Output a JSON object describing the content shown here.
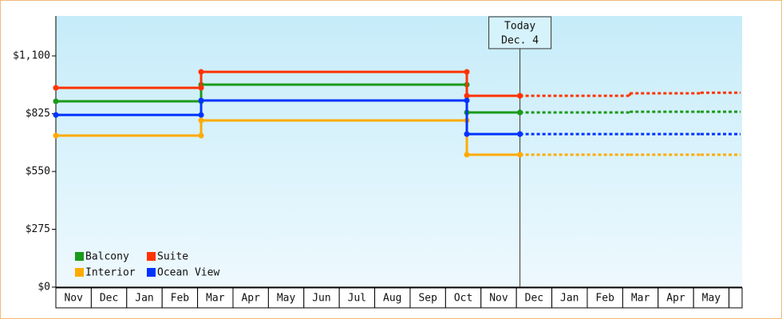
{
  "chart_data": {
    "type": "step",
    "categories": [
      "Nov",
      "Dec",
      "Jan",
      "Feb",
      "Mar",
      "Apr",
      "May",
      "Jun",
      "Jul",
      "Aug",
      "Sep",
      "Oct",
      "Nov",
      "Dec",
      "Jan",
      "Feb",
      "Mar",
      "Apr",
      "May",
      null
    ],
    "x": [
      0,
      4.1,
      11.6,
      13.1
    ],
    "forecast_x": [
      13.1,
      16.2,
      18.2
    ],
    "xlim": [
      0,
      19.37
    ],
    "ylim": [
      0,
      1290
    ],
    "yticks": [
      {
        "value": 0,
        "label": "$0"
      },
      {
        "value": 275,
        "label": "$275"
      },
      {
        "value": 550,
        "label": "$550"
      },
      {
        "value": 825,
        "label": "$825"
      },
      {
        "value": 1100,
        "label": "$1,100"
      }
    ],
    "series": [
      {
        "name": "Balcony",
        "color": "#1a9a1a",
        "values": [
          884,
          963,
          831,
          831
        ],
        "forecast": [
          831,
          834,
          834
        ]
      },
      {
        "name": "Suite",
        "color": "#ff3300",
        "values": [
          948,
          1024,
          910,
          910
        ],
        "forecast": [
          910,
          922,
          925
        ]
      },
      {
        "name": "Interior",
        "color": "#ffaa00",
        "values": [
          721,
          793,
          630,
          630
        ],
        "forecast": [
          630,
          630,
          630
        ]
      },
      {
        "name": "Ocean View",
        "color": "#0033ff",
        "values": [
          819,
          888,
          728,
          728
        ],
        "forecast": [
          728,
          728,
          728
        ]
      }
    ],
    "today": {
      "x": 13.1,
      "label": [
        "Today",
        "Dec. 4"
      ]
    },
    "legend": "lower-left"
  }
}
